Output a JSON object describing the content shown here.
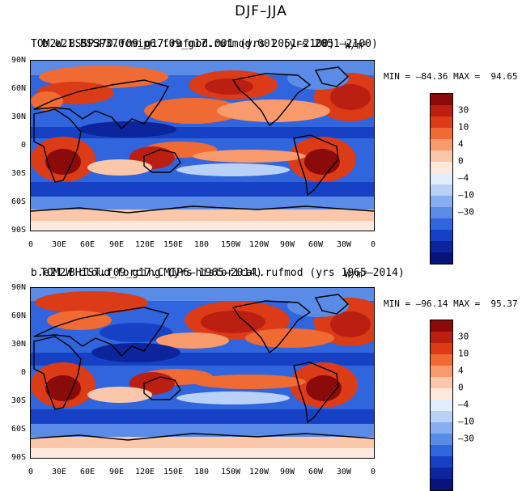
{
  "main_title": "DJF–JJA",
  "panels": [
    {
      "title_a": "TOM2W.BSSP370.f09_g17.rufmod.001 (yrs 2051–2100)",
      "title_b": "b.e21.BSSP370cmip6.f09_g17.rufmod.001 (yrs 2051–2100)",
      "units": "W/m²",
      "min_max": "MIN = –84.36 MAX =  94.65"
    },
    {
      "title_a": "b.e21.BHIST.f09_g17.CMIP6–historical.rufmod (yrs 1965–2014)",
      "title_b": "TOM2W cloud_forcing  (yrs 1965–2014)",
      "units": "W/m²",
      "min_max": "MIN = –96.14 MAX =  95.37"
    }
  ],
  "lat_labels": [
    "90N",
    "60N",
    "30N",
    "0",
    "30S",
    "60S",
    "90S"
  ],
  "lon_labels": [
    "0",
    "30E",
    "60E",
    "90E",
    "120E",
    "150E",
    "180",
    "150W",
    "120W",
    "90W",
    "60W",
    "30W",
    "0"
  ],
  "colorbar_labels": [
    "30",
    "10",
    "4",
    "0",
    "–4",
    "–10",
    "–30"
  ],
  "colorbar_colors": [
    "#8b0a0a",
    "#bb1f12",
    "#dc3b17",
    "#f06a33",
    "#f89a6c",
    "#fbc7aa",
    "#fde8dc",
    "#e3eefc",
    "#b9d1f7",
    "#86aef0",
    "#5a8be6",
    "#3065de",
    "#1741c4",
    "#0c259c",
    "#07127a"
  ],
  "colors": {
    "land_outline": "#000000",
    "background": "#ffffff"
  }
}
